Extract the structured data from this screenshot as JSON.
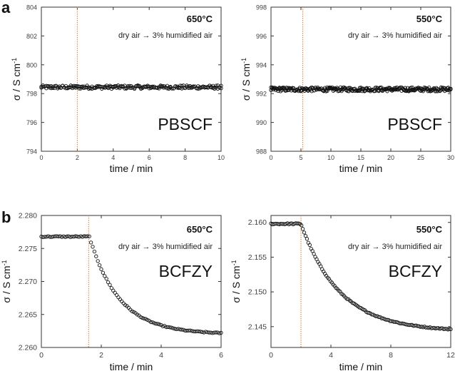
{
  "panel_labels": [
    "a",
    "b"
  ],
  "chart_data": [
    {
      "type": "scatter",
      "panel": "a",
      "temperature": "650°C",
      "condition": "dry air → 3% humidified air",
      "material": "PBSCF",
      "xlabel": "time / min",
      "ylabel": "σ / S cm",
      "ylabel_sup": "-1",
      "xlim": [
        0,
        10
      ],
      "ylim": [
        794,
        804
      ],
      "xticks": [
        "0",
        "2",
        "4",
        "6",
        "8",
        "10"
      ],
      "yticks": [
        "794",
        "796",
        "798",
        "800",
        "802",
        "804"
      ],
      "switch_time": 2.0,
      "series": [
        {
          "name": "σ",
          "plateau": 798.45,
          "noise": 0.12,
          "n": 110
        }
      ]
    },
    {
      "type": "scatter",
      "panel": "a",
      "temperature": "550°C",
      "condition": "dry air → 3% humidified air",
      "material": "PBSCF",
      "xlabel": "time / min",
      "ylabel": "σ / S cm",
      "ylabel_sup": "-1",
      "xlim": [
        0,
        30
      ],
      "ylim": [
        988,
        998
      ],
      "xticks": [
        "0",
        "5",
        "10",
        "15",
        "20",
        "25",
        "30"
      ],
      "yticks": [
        "988",
        "990",
        "992",
        "994",
        "996",
        "998"
      ],
      "switch_time": 5.3,
      "series": [
        {
          "name": "σ",
          "plateau": 992.3,
          "noise": 0.14,
          "n": 150
        }
      ]
    },
    {
      "type": "scatter",
      "panel": "b",
      "temperature": "650°C",
      "condition": "dry air → 3% humidified air",
      "material": "BCFZY",
      "xlabel": "time / min",
      "ylabel": "σ / S cm",
      "ylabel_sup": "-1",
      "xlim": [
        0,
        6
      ],
      "ylim": [
        2.26,
        2.28
      ],
      "xticks": [
        "0",
        "2",
        "4",
        "6"
      ],
      "yticks": [
        "2.260",
        "2.265",
        "2.270",
        "2.275",
        "2.280"
      ],
      "switch_time": 1.58,
      "series": [
        {
          "name": "σ",
          "initial": 2.2768,
          "final": 2.262,
          "tau": 1.0,
          "start_drop": 1.6,
          "n": 105
        }
      ]
    },
    {
      "type": "scatter",
      "panel": "b",
      "temperature": "550°C",
      "condition": "dry air → 3% humidified air",
      "material": "BCFZY",
      "xlabel": "time / min",
      "ylabel": "σ / S cm",
      "ylabel_sup": "-1",
      "xlim": [
        0,
        12
      ],
      "ylim": [
        2.142,
        2.161
      ],
      "xticks": [
        "0",
        "4",
        "8",
        "12"
      ],
      "yticks": [
        "2.145",
        "2.150",
        "2.155",
        "2.160"
      ],
      "switch_time": 2.0,
      "series": [
        {
          "name": "σ",
          "initial": 2.1598,
          "final": 2.1443,
          "tau": 2.6,
          "start_drop": 2.0,
          "n": 130
        }
      ]
    }
  ]
}
